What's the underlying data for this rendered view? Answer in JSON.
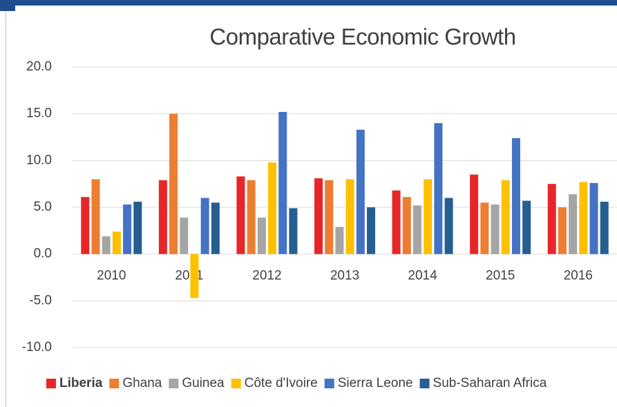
{
  "chart_data": {
    "type": "bar",
    "title": "Comparative Economic Growth",
    "categories": [
      "2010",
      "2011",
      "2012",
      "2013",
      "2014",
      "2015",
      "2016"
    ],
    "series": [
      {
        "name": "Liberia",
        "color": "#e8262a",
        "values": [
          6.1,
          7.9,
          8.3,
          8.1,
          6.8,
          8.5,
          7.5
        ]
      },
      {
        "name": "Ghana",
        "color": "#ed7d31",
        "values": [
          8.0,
          15.0,
          7.9,
          7.9,
          6.1,
          5.5,
          5.0
        ]
      },
      {
        "name": "Guinea",
        "color": "#a5a5a5",
        "values": [
          1.9,
          3.9,
          3.9,
          2.9,
          5.2,
          5.3,
          6.4
        ]
      },
      {
        "name": "Côte d'Ivoire",
        "color": "#ffc000",
        "values": [
          2.4,
          -4.7,
          9.8,
          8.0,
          8.0,
          7.9,
          7.7
        ]
      },
      {
        "name": "Sierra Leone",
        "color": "#4472c4",
        "values": [
          5.3,
          6.0,
          15.2,
          13.3,
          14.0,
          12.4,
          7.6
        ]
      },
      {
        "name": "Sub-Saharan Africa",
        "color": "#255e91",
        "values": [
          5.6,
          5.5,
          4.9,
          5.0,
          6.0,
          5.7,
          5.6
        ]
      }
    ],
    "ylim": [
      -10,
      20
    ],
    "yticks": [
      {
        "value": -10,
        "label": "-10.0"
      },
      {
        "value": -5,
        "label": "-5.0"
      },
      {
        "value": 0,
        "label": "0.0"
      },
      {
        "value": 5,
        "label": "5.0"
      },
      {
        "value": 10,
        "label": "10.0"
      },
      {
        "value": 15,
        "label": "15.0"
      },
      {
        "value": 20,
        "label": "20.0"
      }
    ],
    "grid": true,
    "legend": "bottom"
  }
}
